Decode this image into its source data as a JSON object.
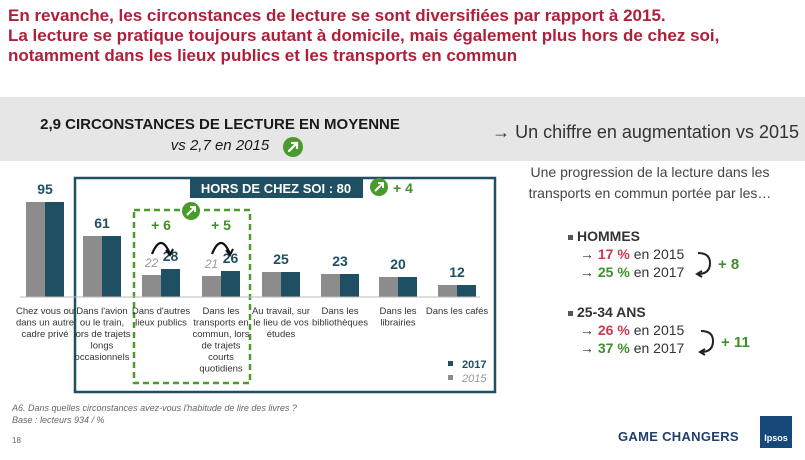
{
  "header": {
    "line1": "En revanche, les circonstances de lecture se sont diversifiées par rapport à 2015.",
    "line2": "La lecture se pratique toujours autant à domicile, mais également plus hors de chez soi,",
    "line3": "notamment dans les lieux publics et les transports en commun"
  },
  "left_panel": {
    "title": "2,9 CIRCONSTANCES DE LECTURE EN MOYENNE",
    "subtitle": "vs 2,7 en 2015"
  },
  "right_panel": {
    "title": "→ Un chiffre en augmentation vs 2015",
    "intro": "Une progression de la lecture dans les transports en commun portée par les…",
    "groups": [
      {
        "label": "HOMMES",
        "line1_pct": "17 %",
        "line1_year": "en 2015",
        "line2_pct": "25 %",
        "line2_year": "en 2017",
        "delta": "+ 8"
      },
      {
        "label": "25-34 ANS",
        "line1_pct": "26 %",
        "line1_year": "en 2015",
        "line2_pct": "37 %",
        "line2_year": "en 2017",
        "delta": "+ 11"
      }
    ]
  },
  "chart_data": {
    "type": "bar",
    "categories": [
      [
        "Chez vous ou",
        "dans un autre",
        "cadre privé"
      ],
      [
        "Dans l'avion",
        "ou le train,",
        "lors de trajets",
        "longs",
        "occasionnels"
      ],
      [
        "Dans d'autres",
        "lieux publics"
      ],
      [
        "Dans les",
        "transports en",
        "commun, lors",
        "de trajets",
        "courts",
        "quotidiens"
      ],
      [
        "Au travail, sur",
        "le lieu de vos",
        "études"
      ],
      [
        "Dans les",
        "bibliothèques"
      ],
      [
        "Dans les",
        "librairies"
      ],
      [
        "Dans les cafés"
      ]
    ],
    "series": [
      {
        "name": "2017",
        "values": [
          95,
          61,
          28,
          26,
          25,
          23,
          20,
          12
        ]
      },
      {
        "name": "2015",
        "values": [
          95,
          61,
          22,
          21,
          25,
          23,
          20,
          12
        ]
      }
    ],
    "labels_2015": [
      "",
      "",
      "22",
      "21",
      "",
      "",
      "",
      ""
    ],
    "labels_2017": [
      "95",
      "61",
      "28",
      "26",
      "25",
      "23",
      "20",
      "12"
    ],
    "increases": [
      "",
      "",
      "+ 6",
      "+ 5",
      "",
      "",
      "",
      ""
    ],
    "group_label": "HORS DE CHEZ SOI : 80",
    "group_delta": "+ 4",
    "legend": [
      "2017",
      "2015"
    ],
    "colors": {
      "2017": "#1e4f63",
      "2015": "#8c8c8c"
    },
    "ylim": [
      0,
      100
    ]
  },
  "footer": {
    "question": "A6. Dans quelles circonstances avez-vous l'habitude de lire des livres ?",
    "base": "Base : lecteurs 934 / %",
    "page": "18",
    "brand": "GAME CHANGERS",
    "logo": "Ipsos"
  }
}
